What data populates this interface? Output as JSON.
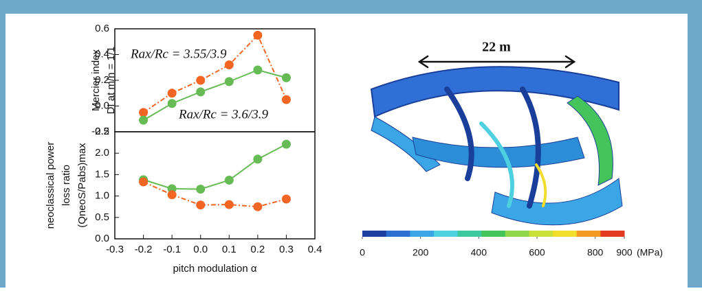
{
  "chart_data": [
    {
      "type": "line",
      "ylabel": [
        "Mercier index",
        "DI at m/n = 1/1"
      ],
      "xlim": [
        -0.3,
        0.4
      ],
      "ylim": [
        -0.2,
        0.6
      ],
      "yticks": [
        {
          "value": -0.2,
          "label": "-0.2"
        },
        {
          "value": 0,
          "label": "0.0"
        },
        0.2,
        0.4,
        0.6
      ],
      "x": [
        -0.2,
        -0.1,
        0,
        0.1,
        0.2,
        0.3
      ],
      "series": [
        {
          "name": "Rax/Rc = 3.55/3.9",
          "color": "#f26522",
          "dash": true,
          "values": [
            -0.05,
            0.1,
            0.2,
            0.32,
            0.55,
            0.05
          ]
        },
        {
          "name": "Rax/Rc = 3.6/3.9",
          "color": "#66bb55",
          "dash": false,
          "values": [
            -0.11,
            0.02,
            0.11,
            0.19,
            0.28,
            0.22
          ]
        }
      ]
    },
    {
      "type": "line",
      "ylabel": [
        "neoclassical power",
        "loss  ratio",
        "(QneoS/Pabs)max"
      ],
      "xlabel": "pitch modulation α",
      "xlim": [
        -0.3,
        0.4
      ],
      "ylim": [
        0,
        2.5
      ],
      "xticks": [
        -0.3,
        -0.2,
        -0.1,
        {
          "value": 0,
          "label": "0.0"
        },
        0.1,
        0.2,
        0.3,
        0.4
      ],
      "yticks": [
        {
          "value": 0,
          "label": "0.0"
        },
        0.5,
        {
          "value": 1,
          "label": "1.0"
        },
        1.5,
        {
          "value": 2,
          "label": "2.0"
        },
        2.5
      ],
      "x": [
        -0.2,
        -0.1,
        0,
        0.1,
        0.2,
        0.3
      ],
      "series": [
        {
          "color": "#66bb55",
          "dash": false,
          "values": [
            1.38,
            1.17,
            1.16,
            1.37,
            1.86,
            2.21
          ]
        },
        {
          "color": "#f26522",
          "dash": true,
          "values": [
            1.33,
            1.03,
            0.79,
            0.8,
            0.75,
            0.93
          ]
        }
      ]
    }
  ],
  "figure": {
    "scale_label": "22 m",
    "colorbar": {
      "lim": [
        0,
        900
      ],
      "ticks": [
        0,
        200,
        400,
        600,
        800,
        900
      ],
      "unit": "(MPa)",
      "colors": [
        "#1f3f9e",
        "#2d6fd0",
        "#3aa6e6",
        "#4fd0e0",
        "#3cc9a0",
        "#44c45a",
        "#8ed64a",
        "#c8e03a",
        "#f2dd2a",
        "#f39a22",
        "#e33a22"
      ]
    }
  }
}
